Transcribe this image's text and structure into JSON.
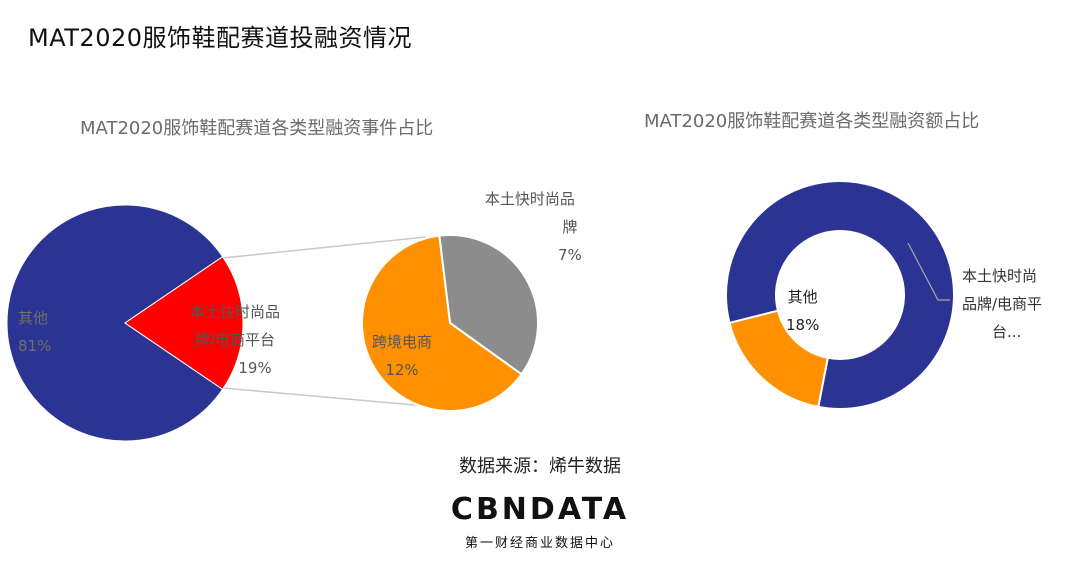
{
  "page": {
    "title": "MAT2020服饰鞋配赛道投融资情况",
    "source": "数据来源：烯牛数据",
    "logo_text": "CBNDATA",
    "logo_sub": "第一财经商业数据中心"
  },
  "chart_data": [
    {
      "type": "pie",
      "title": "MAT2020服饰鞋配赛道各类型融资事件占比",
      "slices": [
        {
          "label": "其他",
          "value": 81,
          "display": "81%",
          "color": "#2B3393"
        },
        {
          "label": "本土快时尚品牌/电商平台",
          "value": 19,
          "display": "19%",
          "color": "#FF0000"
        }
      ],
      "breakdown": {
        "parent": "本土快时尚品牌/电商平台",
        "slices": [
          {
            "label": "跨境电商",
            "value": 12,
            "display": "12%",
            "color": "#FF9100"
          },
          {
            "label": "本土快时尚品牌",
            "value": 7,
            "display": "7%",
            "color": "#8C8C8C"
          }
        ]
      }
    },
    {
      "type": "donut",
      "title": "MAT2020服饰鞋配赛道各类型融资额占比",
      "slices": [
        {
          "label": "本土快时尚品牌/电商平台",
          "value": 82,
          "display": "",
          "color": "#2B3393"
        },
        {
          "label": "其他",
          "value": 18,
          "display": "18%",
          "color": "#FF9100"
        }
      ]
    }
  ],
  "labels": {
    "pie1_other_name": "其他",
    "pie1_other_pct": "81%",
    "pie1_red_name_l1": "本土快时尚品",
    "pie1_red_name_l2": "牌/电商平台",
    "pie1_red_pct": "19%",
    "pie2_gray_name_l1": "本土快时尚品",
    "pie2_gray_name_l2": "牌",
    "pie2_gray_pct": "7%",
    "pie2_orange_name": "跨境电商",
    "pie2_orange_pct": "12%",
    "donut_other_name": "其他",
    "donut_other_pct": "18%",
    "donut_main_l1": "本土快时尚",
    "donut_main_l2": "品牌/电商平",
    "donut_main_l3": "台..."
  }
}
